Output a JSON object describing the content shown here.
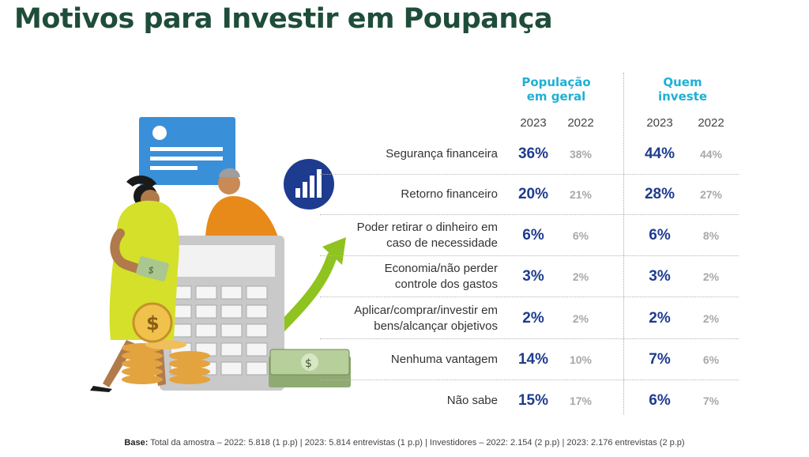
{
  "title": "Motivos para Investir em Poupança",
  "columns": {
    "group1": [
      "População",
      "em geral"
    ],
    "group2": [
      "Quem",
      "investe"
    ],
    "years": [
      "2023",
      "2022",
      "2023",
      "2022"
    ]
  },
  "rows": [
    {
      "label": [
        "Segurança financeira"
      ],
      "pop2023": "36%",
      "pop2022": "38%",
      "inv2023": "44%",
      "inv2022": "44%"
    },
    {
      "label": [
        "Retorno financeiro"
      ],
      "pop2023": "20%",
      "pop2022": "21%",
      "inv2023": "28%",
      "inv2022": "27%"
    },
    {
      "label": [
        "Poder retirar o dinheiro em",
        "caso de necessidade"
      ],
      "pop2023": "6%",
      "pop2022": "6%",
      "inv2023": "6%",
      "inv2022": "8%"
    },
    {
      "label": [
        "Economia/não perder",
        "controle dos gastos"
      ],
      "pop2023": "3%",
      "pop2022": "2%",
      "inv2023": "3%",
      "inv2022": "2%"
    },
    {
      "label": [
        "Aplicar/comprar/investir em",
        "bens/alcançar objetivos"
      ],
      "pop2023": "2%",
      "pop2022": "2%",
      "inv2023": "2%",
      "inv2022": "2%"
    },
    {
      "label": [
        "Nenhuma vantagem"
      ],
      "pop2023": "14%",
      "pop2022": "10%",
      "inv2023": "7%",
      "inv2022": "6%"
    },
    {
      "label": [
        "Não sabe"
      ],
      "pop2023": "15%",
      "pop2022": "17%",
      "inv2023": "6%",
      "inv2022": "7%"
    }
  ],
  "footer": {
    "prefix": "Base:",
    "text": "Total da amostra – 2022: 5.818 (1 p.p) | 2023: 5.814 entrevistas (1 p.p) | Investidores – 2022: 2.154 (2 p.p) | 2023: 2.176 entrevistas (2 p.p)"
  },
  "colors": {
    "title": "#1e4d3a",
    "accent": "#1fb0d4",
    "value2023": "#1d3b8f",
    "value2022": "#a8a8a8"
  },
  "illustration": {
    "icons": [
      "document-icon",
      "bar-chart-icon",
      "calculator-icon",
      "coin-icon",
      "money-stack-icon",
      "arrow-up-icon"
    ]
  }
}
